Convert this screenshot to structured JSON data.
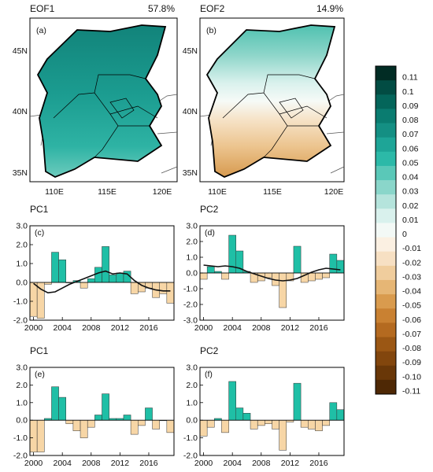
{
  "colors": {
    "positive_bar": "#1fbfa6",
    "negative_bar": "#f7d6a6",
    "smooth_line": "#111111",
    "map_positive_deep": "#158e85",
    "boundary": "#000000"
  },
  "colorbar": {
    "labels": [
      "0.11",
      "0.1",
      "0.09",
      "0.08",
      "0.07",
      "0.06",
      "0.05",
      "0.04",
      "0.03",
      "0.02",
      "0.01",
      "0",
      "-0.01",
      "-0.02",
      "-0.03",
      "-0.04",
      "-0.05",
      "-0.06",
      "-0.07",
      "-0.08",
      "-0.09",
      "-0.10",
      "-0.11"
    ],
    "colors": [
      "#012c24",
      "#024c43",
      "#04655a",
      "#0a7c70",
      "#148f83",
      "#1ea597",
      "#2cb9a8",
      "#5ac8b8",
      "#8ad6ca",
      "#b5e4dc",
      "#d9f1ed",
      "#f3f9f6",
      "#fbf0e2",
      "#f7e0c3",
      "#f0cd9d",
      "#e6b675",
      "#d99b4e",
      "#c98132",
      "#b46a20",
      "#9b5714",
      "#82460d",
      "#693708",
      "#4e2805"
    ]
  },
  "maps": [
    {
      "id": "a",
      "panel_label": "(a)",
      "title": "EOF1",
      "percent": "57.8%",
      "lat_labels": [
        "45N",
        "40N",
        "35N"
      ],
      "lon_labels": [
        "110E",
        "115E",
        "120E"
      ]
    },
    {
      "id": "b",
      "panel_label": "(b)",
      "title": "EOF2",
      "percent": "14.9%",
      "lat_labels": [
        "45N",
        "40N",
        "35N"
      ],
      "lon_labels": [
        "110E",
        "115E",
        "120E"
      ]
    }
  ],
  "chart_data": [
    {
      "type": "bar",
      "panel_label": "(c)",
      "title": "PC1",
      "ylim": [
        -2,
        3
      ],
      "yticks": [
        "3.0",
        "2.0",
        "1.0",
        "0.0",
        "-1.0",
        "-2.0"
      ],
      "xticks": [
        "2000",
        "2004",
        "2008",
        "2012",
        "2016"
      ],
      "x": [
        2000,
        2001,
        2002,
        2003,
        2004,
        2005,
        2006,
        2007,
        2008,
        2009,
        2010,
        2011,
        2012,
        2013,
        2014,
        2015,
        2016,
        2017,
        2018,
        2019
      ],
      "values": [
        -1.8,
        -1.9,
        -0.1,
        1.6,
        1.2,
        0.0,
        0.1,
        -0.3,
        0.2,
        0.8,
        1.9,
        0.4,
        0.5,
        0.6,
        -0.6,
        -0.5,
        -0.3,
        -0.8,
        -0.6,
        -1.1
      ],
      "line": [
        -0.05,
        -0.35,
        -0.55,
        -0.5,
        -0.3,
        -0.1,
        0.05,
        0.2,
        0.35,
        0.5,
        0.6,
        0.45,
        0.5,
        0.45,
        0.1,
        -0.15,
        -0.3,
        -0.4,
        -0.45,
        -0.45
      ]
    },
    {
      "type": "bar",
      "panel_label": "(d)",
      "title": "PC2",
      "ylim": [
        -3,
        3
      ],
      "yticks": [
        "3.0",
        "2.0",
        "1.0",
        "0.0",
        "-1.0",
        "-2.0",
        "-3.0"
      ],
      "xticks": [
        "2000",
        "2004",
        "2008",
        "2012",
        "2016"
      ],
      "x": [
        2000,
        2001,
        2002,
        2003,
        2004,
        2005,
        2006,
        2007,
        2008,
        2009,
        2010,
        2011,
        2012,
        2013,
        2014,
        2015,
        2016,
        2017,
        2018,
        2019
      ],
      "values": [
        -0.4,
        0.4,
        0.1,
        -0.4,
        2.4,
        1.4,
        0.1,
        -0.6,
        -0.5,
        -0.3,
        -0.8,
        -2.2,
        -0.5,
        1.7,
        -0.6,
        -0.5,
        -0.4,
        -0.3,
        1.2,
        0.8
      ],
      "line": [
        0.5,
        0.45,
        0.4,
        0.45,
        0.4,
        0.3,
        0.1,
        -0.05,
        -0.2,
        -0.35,
        -0.45,
        -0.5,
        -0.45,
        -0.35,
        -0.15,
        0.05,
        0.2,
        0.3,
        0.25,
        0.2
      ]
    },
    {
      "type": "bar",
      "panel_label": "(e)",
      "title": "PC1",
      "ylim": [
        -2,
        3
      ],
      "yticks": [
        "3.0",
        "2.0",
        "1.0",
        "0.0",
        "-1.0",
        "-2.0"
      ],
      "xticks": [
        "2000",
        "2004",
        "2008",
        "2012",
        "2016"
      ],
      "x": [
        2000,
        2001,
        2002,
        2003,
        2004,
        2005,
        2006,
        2007,
        2008,
        2009,
        2010,
        2011,
        2012,
        2013,
        2014,
        2015,
        2016,
        2017,
        2018,
        2019
      ],
      "values": [
        -1.8,
        -1.8,
        0.1,
        1.9,
        1.3,
        -0.2,
        -0.6,
        -1.0,
        -0.4,
        0.3,
        1.5,
        0.1,
        0.1,
        0.3,
        -0.8,
        -0.3,
        0.7,
        -0.5,
        0.0,
        -0.7
      ]
    },
    {
      "type": "bar",
      "panel_label": "(f)",
      "title": "PC2",
      "ylim": [
        -2,
        3
      ],
      "yticks": [
        "3.0",
        "2.0",
        "1.0",
        "0.0",
        "-1.0",
        "-2.0"
      ],
      "xticks": [
        "2000",
        "2004",
        "2008",
        "2012",
        "2016"
      ],
      "x": [
        2000,
        2001,
        2002,
        2003,
        2004,
        2005,
        2006,
        2007,
        2008,
        2009,
        2010,
        2011,
        2012,
        2013,
        2014,
        2015,
        2016,
        2017,
        2018,
        2019
      ],
      "values": [
        -0.9,
        -0.4,
        0.1,
        -0.7,
        2.2,
        0.7,
        0.4,
        -0.5,
        -0.3,
        -0.2,
        -0.5,
        -1.7,
        -0.1,
        2.1,
        -0.4,
        -0.5,
        -0.6,
        -0.3,
        1.0,
        0.6
      ]
    }
  ]
}
